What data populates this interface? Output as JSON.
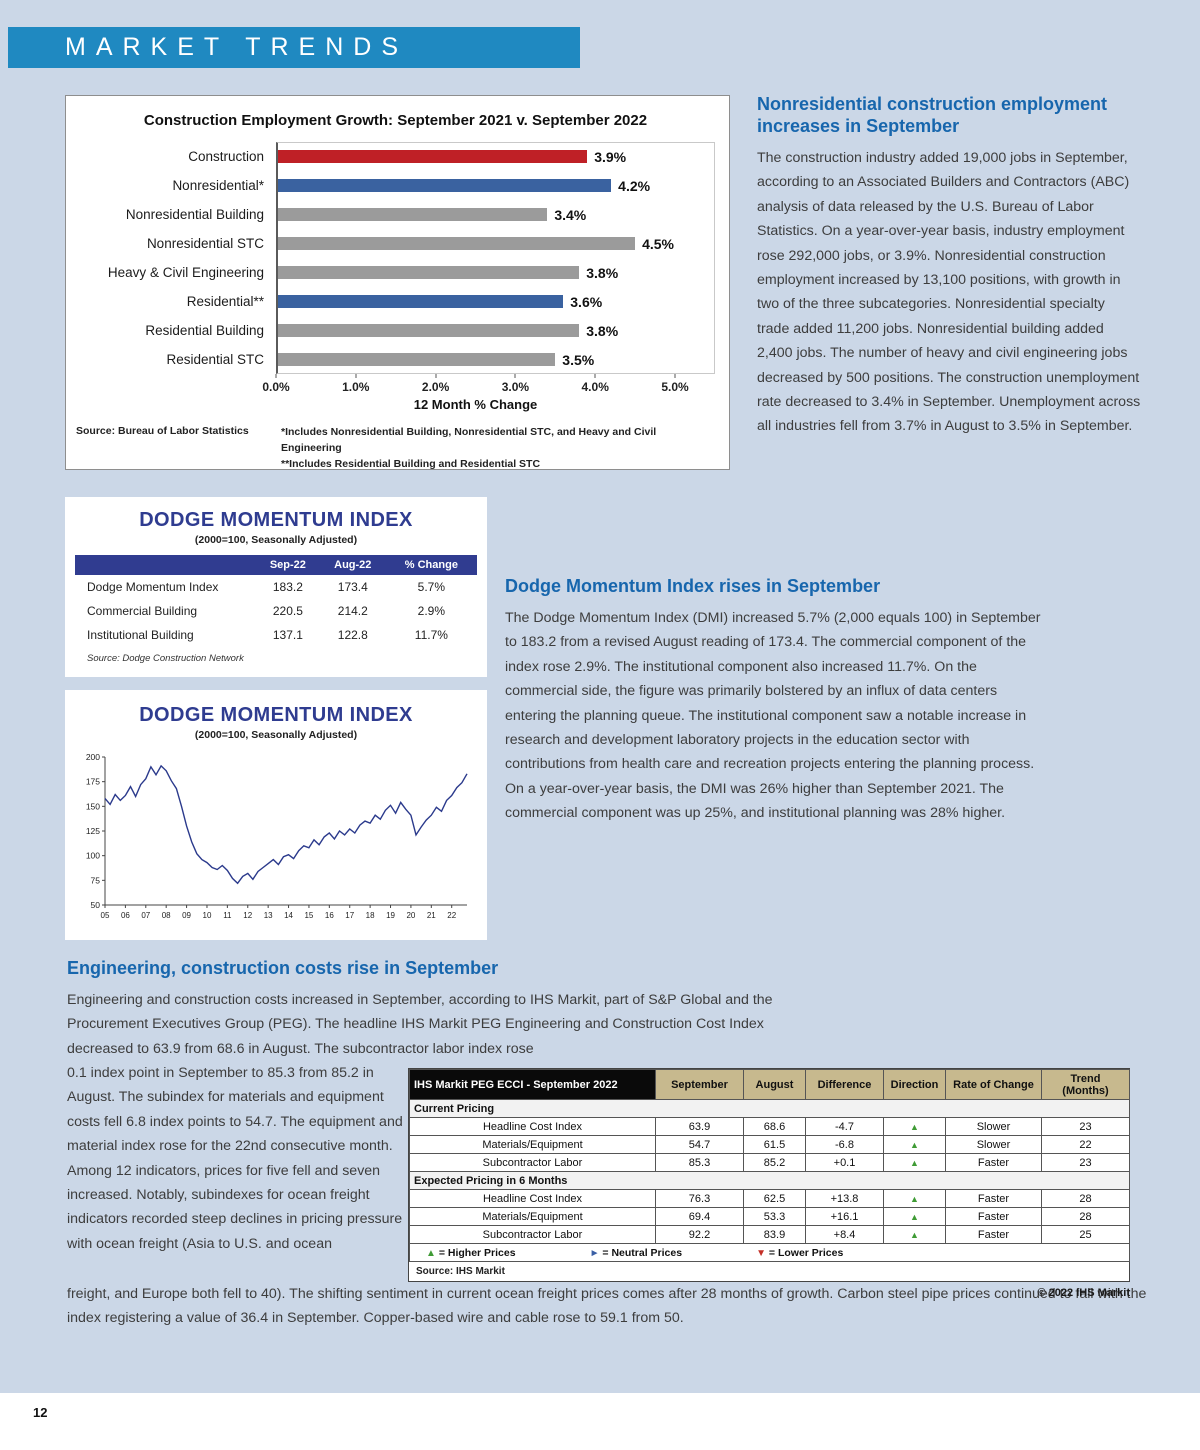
{
  "banner": {
    "title": "MARKET TRENDS"
  },
  "page_number": "12",
  "articles": {
    "nonres": {
      "heading": "Nonresidential construction employment increases in September",
      "body": "The construction industry added 19,000 jobs in September, according to an Associated Builders and Contractors (ABC) analysis of data released by the U.S. Bureau of Labor Statistics. On a year-over-year basis, industry employment rose 292,000 jobs, or 3.9%. Nonresidential construction employment increased by 13,100 positions, with growth in two of the three subcategories. Nonresidential specialty trade added 11,200 jobs. Nonresidential building added 2,400 jobs. The number of heavy and civil engineering jobs decreased by 500 positions. The construction unemployment rate decreased to 3.4% in September. Unemployment across all industries fell from 3.7% in August to 3.5% in September."
    },
    "dodge": {
      "heading": "Dodge Momentum Index rises in September",
      "body": "The Dodge Momentum Index (DMI) increased 5.7% (2,000 equals 100) in September to 183.2 from a revised August reading of 173.4. The commercial component of the index rose 2.9%. The institutional component also increased 11.7%. On the commercial side, the figure was primarily bolstered by an influx of data centers entering the planning queue. The institutional component saw a notable increase in research and development laboratory projects in the education sector with contributions from health care and recreation projects entering the planning process. On a year-over-year basis, the DMI was 26% higher than September 2021. The commercial component was up 25%, and institutional planning was 28% higher."
    },
    "costs": {
      "heading": "Engineering, construction costs rise in September",
      "intro": "Engineering and construction costs increased in September, according to IHS Markit, part of S&P Global and the Procurement Executives Group (PEG). The headline IHS Markit PEG Engineering and Construction Cost Index decreased to 63.9 from 68.6 in August. The subcontractor labor index rose",
      "left_col": "0.1 index point in September to 85.3 from 85.2 in August. The subindex for materials and equipment costs fell 6.8 index points to 54.7. The equipment and material index rose for the 22nd consecutive month. Among 12 indicators, prices for five fell and seven increased. Notably, subindexes for ocean freight indicators recorded steep declines in pricing pressure with ocean freight (Asia to U.S. and ocean",
      "continuation": "freight, and Europe both fell to 40). The shifting sentiment in current ocean freight prices comes after 28 months of growth. Carbon steel pipe prices continued to fall with the index registering a value of 36.4 in September. Copper-based wire and cable rose to 59.1 from 50."
    }
  },
  "dodge_table": {
    "title": "DODGE MOMENTUM INDEX",
    "subtitle": "(2000=100, Seasonally Adjusted)",
    "columns": [
      "",
      "Sep-22",
      "Aug-22",
      "% Change"
    ],
    "rows": [
      [
        "Dodge Momentum Index",
        "183.2",
        "173.4",
        "5.7%"
      ],
      [
        "Commercial Building",
        "220.5",
        "214.2",
        "2.9%"
      ],
      [
        "Institutional Building",
        "137.1",
        "122.8",
        "11.7%"
      ]
    ],
    "source": "Source: Dodge Construction Network"
  },
  "ihs_table": {
    "title": "IHS Markit PEG ECCI - September 2022",
    "columns": [
      "September",
      "August",
      "Difference",
      "Direction",
      "Rate of Change",
      "Trend (Months)"
    ],
    "sections": [
      {
        "label": "Current Pricing",
        "rows": [
          {
            "label": "Headline Cost Index",
            "september": "63.9",
            "august": "68.6",
            "difference": "-4.7",
            "direction": "up",
            "rate": "Slower",
            "trend": "23"
          },
          {
            "label": "Materials/Equipment",
            "september": "54.7",
            "august": "61.5",
            "difference": "-6.8",
            "direction": "up",
            "rate": "Slower",
            "trend": "22"
          },
          {
            "label": "Subcontractor Labor",
            "september": "85.3",
            "august": "85.2",
            "difference": "+0.1",
            "direction": "up",
            "rate": "Faster",
            "trend": "23"
          }
        ]
      },
      {
        "label": "Expected Pricing in 6 Months",
        "rows": [
          {
            "label": "Headline Cost Index",
            "september": "76.3",
            "august": "62.5",
            "difference": "+13.8",
            "direction": "up",
            "rate": "Faster",
            "trend": "28"
          },
          {
            "label": "Materials/Equipment",
            "september": "69.4",
            "august": "53.3",
            "difference": "+16.1",
            "direction": "up",
            "rate": "Faster",
            "trend": "28"
          },
          {
            "label": "Subcontractor Labor",
            "september": "92.2",
            "august": "83.9",
            "difference": "+8.4",
            "direction": "up",
            "rate": "Faster",
            "trend": "25"
          }
        ]
      }
    ],
    "legend": [
      {
        "name": "higher-prices",
        "symbol": "▲",
        "color": "#3f9b35",
        "label": "= Higher Prices"
      },
      {
        "name": "neutral-prices",
        "symbol": "►",
        "color": "#3a5fa5",
        "label": "= Neutral Prices"
      },
      {
        "name": "lower-prices",
        "symbol": "▼",
        "color": "#c43027",
        "label": "= Lower Prices"
      }
    ],
    "source": "Source: IHS Markit",
    "copyright": "© 2022 IHS Markit"
  },
  "chart_data": [
    {
      "id": "construction_employment_growth",
      "type": "bar",
      "orientation": "horizontal",
      "title": "Construction Employment Growth: September 2021 v. September 2022",
      "categories": [
        "Construction",
        "Nonresidential*",
        "Nonresidential Building",
        "Nonresidential STC",
        "Heavy & Civil Engineering",
        "Residential**",
        "Residential Building",
        "Residential STC"
      ],
      "values": [
        3.9,
        4.2,
        3.4,
        4.5,
        3.8,
        3.6,
        3.8,
        3.5
      ],
      "value_labels": [
        "3.9%",
        "4.2%",
        "3.4%",
        "4.5%",
        "3.8%",
        "3.6%",
        "3.8%",
        "3.5%"
      ],
      "bar_colors": [
        "#bf2026",
        "#3a62a0",
        "#9b9b9b",
        "#9b9b9b",
        "#9b9b9b",
        "#3a62a0",
        "#9b9b9b",
        "#9b9b9b"
      ],
      "xlabel": "12 Month % Change",
      "xlim": [
        0,
        5
      ],
      "x_ticks": [
        "0.0%",
        "1.0%",
        "2.0%",
        "3.0%",
        "4.0%",
        "5.0%"
      ],
      "grid": false,
      "legend": false,
      "source": "Source:  Bureau of Labor Statistics",
      "footnotes": [
        "*Includes Nonresidential Building, Nonresidential STC, and Heavy and Civil Engineering",
        "**Includes Residential Building and Residential STC"
      ]
    },
    {
      "id": "dodge_momentum_index_history",
      "type": "line",
      "title": "DODGE MOMENTUM INDEX",
      "subtitle": "(2000=100, Seasonally Adjusted)",
      "ylim": [
        50,
        200
      ],
      "y_ticks": [
        200,
        175,
        150,
        125,
        100,
        75,
        50
      ],
      "x_ticks": [
        "05",
        "06",
        "07",
        "08",
        "09",
        "10",
        "11",
        "12",
        "13",
        "14",
        "15",
        "16",
        "17",
        "18",
        "19",
        "20",
        "21",
        "22"
      ],
      "line_color": "#2b3a8c",
      "grid": false,
      "legend": false,
      "points": [
        158,
        152,
        162,
        156,
        161,
        170,
        160,
        172,
        178,
        190,
        182,
        191,
        186,
        176,
        168,
        150,
        130,
        114,
        102,
        96,
        93,
        88,
        86,
        90,
        85,
        77,
        72,
        79,
        82,
        76,
        84,
        88,
        92,
        96,
        91,
        99,
        101,
        97,
        105,
        110,
        108,
        116,
        111,
        119,
        123,
        117,
        125,
        121,
        127,
        123,
        131,
        135,
        133,
        141,
        137,
        146,
        151,
        143,
        154,
        147,
        141,
        121,
        129,
        136,
        141,
        149,
        145,
        156,
        161,
        169,
        174,
        183
      ]
    }
  ]
}
